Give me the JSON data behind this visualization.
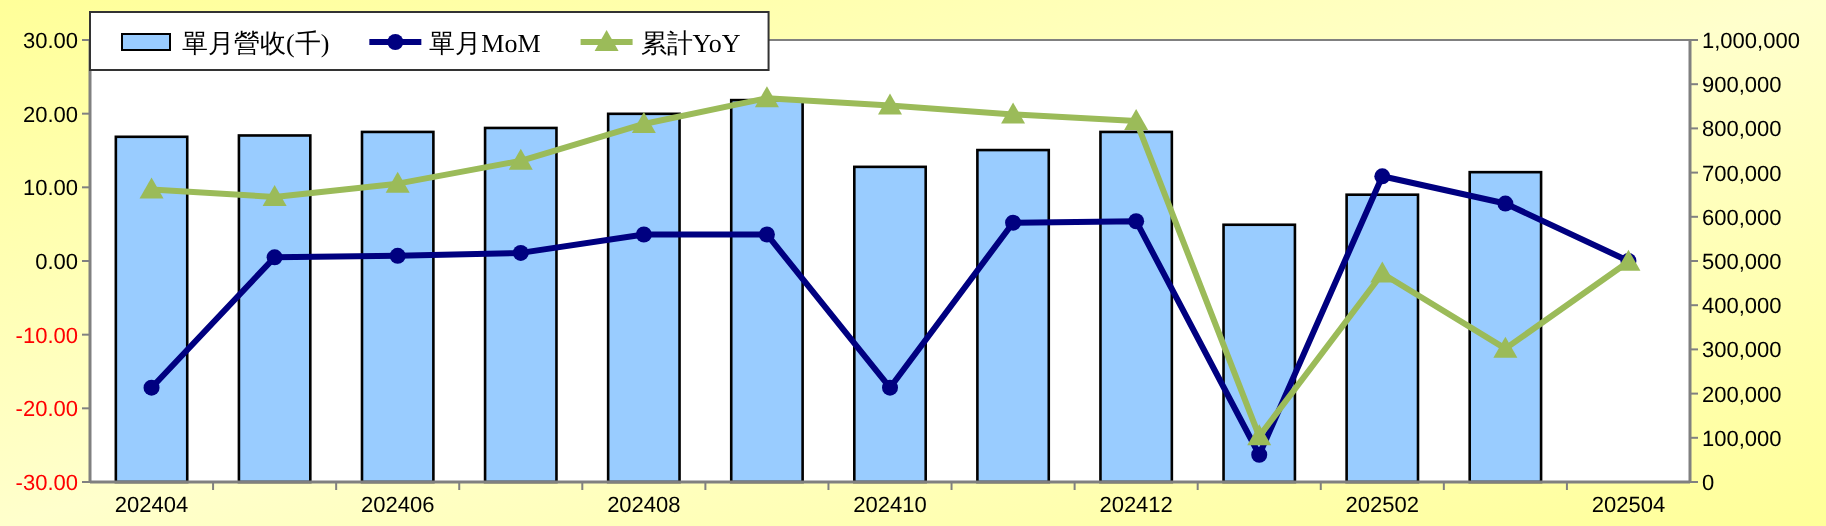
{
  "chart_data": {
    "type": "bar",
    "categories": [
      "202404",
      null,
      "202406",
      null,
      "202408",
      null,
      "202410",
      null,
      "202412",
      null,
      "202502",
      null,
      "202504"
    ],
    "series": [
      {
        "name": "單月營收(千)",
        "axis": "y2",
        "color": "#99ccff",
        "values": [
          781000,
          784000,
          792000,
          801000,
          833000,
          864000,
          713000,
          751000,
          792000,
          582000,
          650000,
          701000,
          null
        ]
      },
      {
        "name": "單月MoM",
        "type": "line",
        "axis": "y",
        "color": "#000080",
        "marker": "circle",
        "values": [
          -17.2,
          0.5,
          0.7,
          1.1,
          3.6,
          3.6,
          -17.2,
          5.2,
          5.4,
          -26.3,
          11.5,
          7.8,
          0.0
        ]
      },
      {
        "name": "累計YoY",
        "type": "line",
        "axis": "y",
        "color": "#9bbb59",
        "marker": "triangle",
        "values": [
          9.7,
          8.7,
          10.5,
          13.6,
          18.6,
          22.1,
          21.1,
          19.9,
          19.0,
          -23.8,
          -1.7,
          -11.9,
          -0.1
        ]
      }
    ],
    "ylim": [
      -30,
      30
    ],
    "yticks": [
      {
        "value": -30,
        "label": "-30.00"
      },
      {
        "value": -20,
        "label": "-20.00"
      },
      {
        "value": -10,
        "label": "-10.00"
      },
      {
        "value": 0,
        "label": "0.00"
      },
      {
        "value": 10,
        "label": "10.00"
      },
      {
        "value": 20,
        "label": "20.00"
      },
      {
        "value": 30,
        "label": "30.00"
      }
    ],
    "y2lim": [
      0,
      1000000
    ],
    "y2ticks": [
      0,
      {
        "value": 100000,
        "label": "100,000"
      },
      {
        "value": 200000,
        "label": "200,000"
      },
      {
        "value": 300000,
        "label": "300,000"
      },
      {
        "value": 400000,
        "label": "400,000"
      },
      {
        "value": 500000,
        "label": "500,000"
      },
      {
        "value": 600000,
        "label": "600,000"
      },
      {
        "value": 700000,
        "label": "700,000"
      },
      {
        "value": 800000,
        "label": "800,000"
      },
      {
        "value": 900000,
        "label": "900,000"
      },
      {
        "value": 1000000,
        "label": "1,000,000"
      }
    ],
    "grid": false,
    "legend": "top left"
  }
}
